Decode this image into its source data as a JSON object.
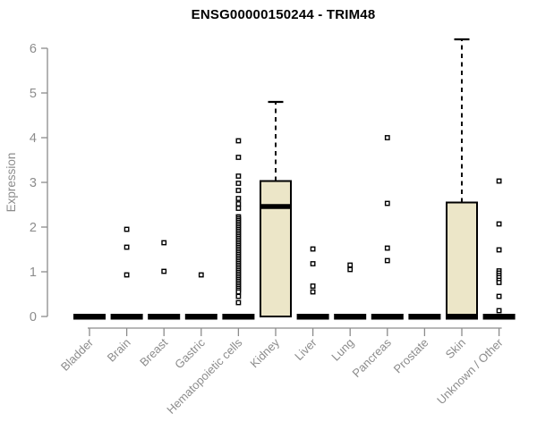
{
  "chart_data": {
    "type": "boxplot",
    "title": "ENSG00000150244 - TRIM48",
    "ylabel": "Expression",
    "xlabel": "",
    "ylim": [
      0,
      6.35
    ],
    "yticks": [
      0,
      1,
      2,
      3,
      4,
      5,
      6
    ],
    "grid": false,
    "legend": "none",
    "categories": [
      "Bladder",
      "Brain",
      "Breast",
      "Gastric",
      "Hematopoietic cells",
      "Kidney",
      "Liver",
      "Lung",
      "Pancreas",
      "Prostate",
      "Skin",
      "Unknown / Other"
    ],
    "boxes": [
      {
        "category": "Bladder",
        "q1": 0,
        "median": 0,
        "q3": 0,
        "whisker_low": 0,
        "whisker_high": 0,
        "outliers": []
      },
      {
        "category": "Brain",
        "q1": 0,
        "median": 0,
        "q3": 0,
        "whisker_low": 0,
        "whisker_high": 0,
        "outliers": [
          1.95,
          1.55,
          0.93
        ]
      },
      {
        "category": "Breast",
        "q1": 0,
        "median": 0,
        "q3": 0,
        "whisker_low": 0,
        "whisker_high": 0,
        "outliers": [
          1.65,
          1.01
        ]
      },
      {
        "category": "Gastric",
        "q1": 0,
        "median": 0,
        "q3": 0,
        "whisker_low": 0,
        "whisker_high": 0,
        "outliers": [
          0.93
        ]
      },
      {
        "category": "Hematopoietic cells",
        "q1": 0,
        "median": 0,
        "q3": 0,
        "whisker_low": 0,
        "whisker_high": 0,
        "outliers": [
          3.93,
          3.56,
          3.14,
          2.98,
          2.82,
          2.64,
          2.52,
          2.42,
          2.23,
          2.19,
          2.15,
          2.11,
          2.07,
          2.03,
          1.99,
          1.95,
          1.91,
          1.87,
          1.83,
          1.79,
          1.75,
          1.71,
          1.67,
          1.63,
          1.59,
          1.55,
          1.51,
          1.47,
          1.43,
          1.39,
          1.35,
          1.31,
          1.27,
          1.23,
          1.19,
          1.15,
          1.11,
          1.07,
          1.03,
          0.99,
          0.95,
          0.91,
          0.87,
          0.83,
          0.79,
          0.75,
          0.71,
          0.67,
          0.63,
          0.59,
          0.55,
          0.45,
          0.31
        ]
      },
      {
        "category": "Kidney",
        "q1": 0,
        "median": 2.46,
        "q3": 3.03,
        "whisker_low": 0,
        "whisker_high": 4.8,
        "outliers": []
      },
      {
        "category": "Liver",
        "q1": 0,
        "median": 0,
        "q3": 0,
        "whisker_low": 0,
        "whisker_high": 0,
        "outliers": [
          1.51,
          1.18,
          0.68,
          0.55
        ]
      },
      {
        "category": "Lung",
        "q1": 0,
        "median": 0,
        "q3": 0,
        "whisker_low": 0,
        "whisker_high": 0,
        "outliers": [
          1.15,
          1.05
        ]
      },
      {
        "category": "Pancreas",
        "q1": 0,
        "median": 0,
        "q3": 0,
        "whisker_low": 0,
        "whisker_high": 0,
        "outliers": [
          4.0,
          2.53,
          1.53,
          1.25
        ]
      },
      {
        "category": "Prostate",
        "q1": 0,
        "median": 0,
        "q3": 0,
        "whisker_low": 0,
        "whisker_high": 0,
        "outliers": []
      },
      {
        "category": "Skin",
        "q1": 0,
        "median": 0,
        "q3": 2.55,
        "whisker_low": 0,
        "whisker_high": 6.2,
        "outliers": []
      },
      {
        "category": "Unknown / Other",
        "q1": 0,
        "median": 0,
        "q3": 0,
        "whisker_low": 0,
        "whisker_high": 0,
        "outliers": [
          3.03,
          2.07,
          1.49,
          1.02,
          0.97,
          0.92,
          0.87,
          0.81,
          0.76,
          0.45,
          0.13
        ]
      }
    ]
  },
  "colors": {
    "box_fill": "#ECE6C8",
    "box_border": "#000000",
    "median": "#000000",
    "whisker": "#000000",
    "outlier_stroke": "#000000",
    "outlier_fill": "#FFFFFF",
    "axis": "#8C8C8C",
    "tick_label": "#8C8C8C",
    "title": "#000000",
    "background": "#FFFFFF"
  }
}
